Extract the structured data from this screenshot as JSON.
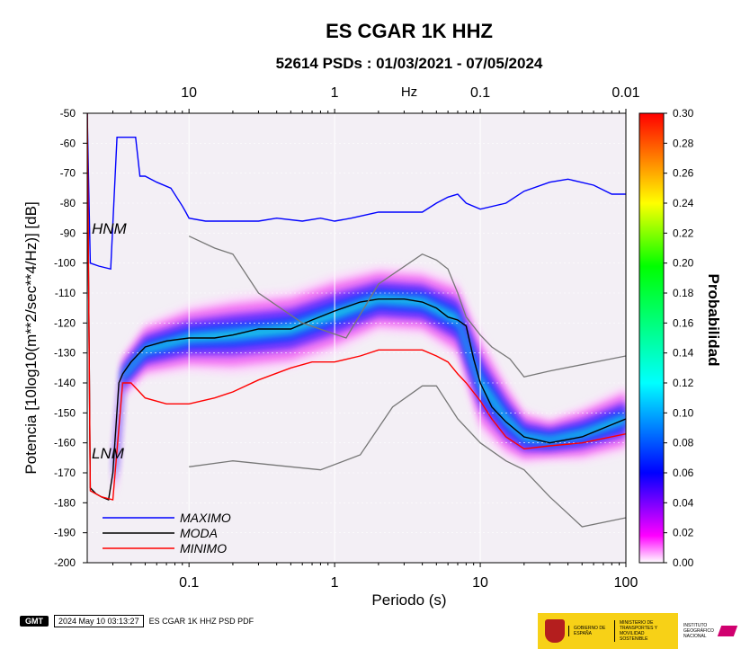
{
  "title": "ES CGAR 1K HHZ",
  "subtitle": "52614 PSDs : 01/03/2021 - 07/05/2024",
  "footer": {
    "logo_text": "GMT",
    "timestamp": "2024 May 10 03:13:27",
    "caption": "ES CGAR 1K HHZ PSD PDF",
    "gov_label_1": "GOBIERNO DE ESPAÑA",
    "gov_label_2": "MINISTERIO DE TRANSPORTES Y MOVILIDAD SOSTENIBLE",
    "gov_label_3": "INSTITUTO GEOGRÁFICO NACIONAL"
  },
  "chart_data": {
    "type": "heatmap",
    "title": "ES CGAR 1K HHZ",
    "subtitle": "52614 PSDs : 01/03/2021 - 07/05/2024",
    "xlabel": "Periodo (s)",
    "ylabel": "Potencia [10log10(m**2/sec**4/Hz)] [dB]",
    "x_scale": "log",
    "xlim": [
      0.02,
      100
    ],
    "ylim": [
      -200,
      -50
    ],
    "x_ticks": [
      0.1,
      1,
      10,
      100
    ],
    "x_tick_labels": [
      "0.1",
      "1",
      "10",
      "100"
    ],
    "y_ticks": [
      -50,
      -60,
      -70,
      -80,
      -90,
      -100,
      -110,
      -120,
      -130,
      -140,
      -150,
      -160,
      -170,
      -180,
      -190,
      -200
    ],
    "top_axis_label": "Hz",
    "top_ticks": [
      10,
      1,
      0.1,
      0.01
    ],
    "top_tick_labels": [
      "10",
      "1",
      "0.1",
      "0.01"
    ],
    "grid": true,
    "colorbar": {
      "label": "Probabilidad",
      "range": [
        0,
        0.3
      ],
      "ticks": [
        0.0,
        0.02,
        0.04,
        0.06,
        0.08,
        0.1,
        0.12,
        0.14,
        0.16,
        0.18,
        0.2,
        0.22,
        0.24,
        0.26,
        0.28,
        0.3
      ],
      "tick_labels": [
        "0.00",
        "0.02",
        "0.04",
        "0.06",
        "0.08",
        "0.10",
        "0.12",
        "0.14",
        "0.16",
        "0.18",
        "0.20",
        "0.22",
        "0.24",
        "0.26",
        "0.28",
        "0.30"
      ],
      "colors": [
        "#ffffff",
        "#ff00ff",
        "#0000ff",
        "#00ffff",
        "#00ff00",
        "#ffff00",
        "#ff0000"
      ]
    },
    "legend_position": "bottom-left",
    "annotations": [
      {
        "text": "HNM",
        "x": 0.021,
        "y": -88
      },
      {
        "text": "LNM",
        "x": 0.021,
        "y": -168
      }
    ],
    "series": [
      {
        "name": "MAXIMO",
        "color": "#0000ff",
        "x": [
          0.02,
          0.021,
          0.024,
          0.029,
          0.032,
          0.034,
          0.043,
          0.046,
          0.05,
          0.06,
          0.075,
          0.09,
          0.095,
          0.1,
          0.13,
          0.2,
          0.3,
          0.4,
          0.6,
          0.8,
          1,
          1.3,
          2,
          3,
          4,
          5,
          6,
          7,
          8,
          10,
          15,
          20,
          30,
          40,
          60,
          80,
          100
        ],
        "y": [
          -50,
          -100,
          -101,
          -102,
          -58,
          -58,
          -58,
          -71,
          -71,
          -73,
          -75,
          -81,
          -83,
          -85,
          -86,
          -86,
          -86,
          -85,
          -86,
          -85,
          -86,
          -85,
          -83,
          -83,
          -83,
          -80,
          -78,
          -77,
          -80,
          -82,
          -80,
          -76,
          -73,
          -72,
          -74,
          -77,
          -77
        ]
      },
      {
        "name": "MODA",
        "color": "#000000",
        "x": [
          0.02,
          0.021,
          0.023,
          0.025,
          0.028,
          0.03,
          0.033,
          0.035,
          0.04,
          0.05,
          0.07,
          0.1,
          0.15,
          0.2,
          0.3,
          0.5,
          0.7,
          1,
          1.5,
          2,
          3,
          4,
          5,
          6,
          7,
          8,
          9,
          10,
          12,
          15,
          20,
          30,
          50,
          100
        ],
        "y": [
          -50,
          -175,
          -177,
          -178,
          -179,
          -170,
          -140,
          -137,
          -133,
          -128,
          -126,
          -125,
          -125,
          -124,
          -122,
          -122,
          -119,
          -116,
          -113,
          -112,
          -112,
          -113,
          -115,
          -118,
          -119,
          -121,
          -132,
          -140,
          -148,
          -153,
          -158,
          -160,
          -158,
          -152
        ]
      },
      {
        "name": "MINIMO",
        "color": "#ff0000",
        "x": [
          0.02,
          0.021,
          0.025,
          0.03,
          0.035,
          0.04,
          0.05,
          0.07,
          0.1,
          0.15,
          0.2,
          0.3,
          0.5,
          0.7,
          1,
          1.5,
          2,
          3,
          4,
          5,
          6,
          7,
          8,
          10,
          12,
          15,
          20,
          30,
          50,
          100
        ],
        "y": [
          -50,
          -176,
          -178,
          -179,
          -140,
          -140,
          -145,
          -147,
          -147,
          -145,
          -143,
          -139,
          -135,
          -133,
          -133,
          -131,
          -129,
          -129,
          -129,
          -131,
          -133,
          -137,
          -140,
          -146,
          -152,
          -158,
          -162,
          -161,
          -160,
          -157
        ]
      },
      {
        "name": "",
        "color": "#777777",
        "x": [
          0.1,
          0.15,
          0.2,
          0.3,
          0.6,
          1.2,
          2,
          4,
          5,
          6,
          7,
          8,
          10,
          12,
          16,
          20,
          30,
          100
        ],
        "y": [
          -91,
          -95,
          -97,
          -110,
          -120,
          -125,
          -107,
          -97,
          -99,
          -102,
          -110,
          -118,
          -124,
          -128,
          -132,
          -138,
          -136,
          -131
        ]
      },
      {
        "name": "",
        "color": "#777777",
        "x": [
          0.1,
          0.2,
          0.5,
          0.8,
          1.5,
          2.5,
          4,
          5,
          7,
          10,
          15,
          20,
          30,
          50,
          100
        ],
        "y": [
          -168,
          -166,
          -168,
          -169,
          -164,
          -148,
          -141,
          -141,
          -152,
          -160,
          -166,
          -169,
          -178,
          -188,
          -185
        ]
      }
    ],
    "density_band": [
      {
        "x": 0.031,
        "center": -170,
        "spread": 5
      },
      {
        "x": 0.035,
        "center": -138,
        "spread": 4
      },
      {
        "x": 0.05,
        "center": -129,
        "spread": 5
      },
      {
        "x": 0.1,
        "center": -125,
        "spread": 6
      },
      {
        "x": 0.2,
        "center": -124,
        "spread": 7
      },
      {
        "x": 0.5,
        "center": -122,
        "spread": 7
      },
      {
        "x": 1,
        "center": -117,
        "spread": 7
      },
      {
        "x": 2,
        "center": -112,
        "spread": 6
      },
      {
        "x": 4,
        "center": -113,
        "spread": 6
      },
      {
        "x": 7,
        "center": -119,
        "spread": 7
      },
      {
        "x": 10,
        "center": -140,
        "spread": 9
      },
      {
        "x": 15,
        "center": -152,
        "spread": 7
      },
      {
        "x": 20,
        "center": -158,
        "spread": 5
      },
      {
        "x": 30,
        "center": -159,
        "spread": 4
      },
      {
        "x": 50,
        "center": -157,
        "spread": 5
      },
      {
        "x": 100,
        "center": -152,
        "spread": 6
      }
    ]
  }
}
